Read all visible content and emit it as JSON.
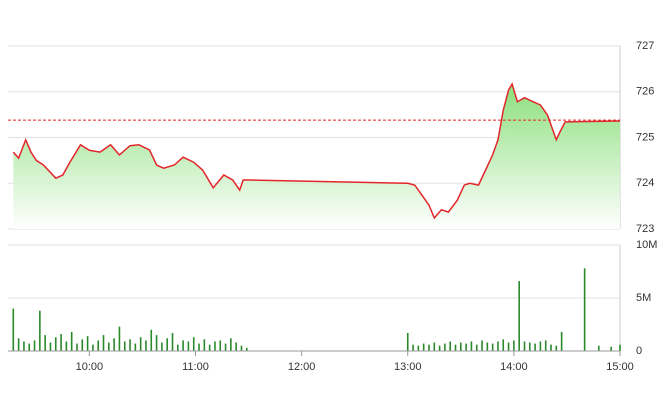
{
  "chart_data": [
    {
      "type": "line",
      "xlim": [
        554,
        900
      ],
      "ylim": [
        723,
        727
      ],
      "yticks": [
        723,
        724,
        725,
        726,
        727
      ],
      "grid": true,
      "color": "#e3262b",
      "fill": "#7fdc6e",
      "reference": 725.38,
      "x": [
        557,
        560,
        564,
        567,
        570,
        574,
        581,
        585,
        589,
        595,
        600,
        606,
        612,
        617,
        623,
        628,
        634,
        638,
        642,
        648,
        653,
        659,
        664,
        670,
        676,
        681,
        685,
        687,
        690,
        780,
        784,
        788,
        792,
        795,
        799,
        803,
        808,
        812,
        815,
        820,
        824,
        828,
        831,
        834,
        837,
        839,
        842,
        846,
        851,
        855,
        859,
        864,
        866,
        869,
        900
      ],
      "values": [
        724.68,
        724.55,
        724.95,
        724.68,
        724.5,
        724.4,
        724.11,
        724.18,
        724.46,
        724.84,
        724.72,
        724.68,
        724.84,
        724.62,
        724.82,
        724.84,
        724.73,
        724.4,
        724.33,
        724.4,
        724.57,
        724.46,
        724.29,
        723.9,
        724.18,
        724.07,
        723.85,
        724.07,
        724.07,
        724.0,
        723.96,
        723.74,
        723.52,
        723.24,
        723.42,
        723.37,
        723.63,
        723.96,
        724.0,
        723.96,
        724.29,
        724.62,
        724.95,
        725.6,
        726.04,
        726.17,
        725.78,
        725.87,
        725.78,
        725.71,
        725.49,
        724.95,
        725.12,
        725.34,
        725.36
      ]
    },
    {
      "type": "bar",
      "xlim": [
        554,
        900
      ],
      "ylim": [
        0,
        10000000
      ],
      "yticks": [
        0,
        {
          "value": 5000000,
          "label": "5M"
        },
        {
          "value": 10000000,
          "label": "10M"
        }
      ],
      "grid": true,
      "xticks": [
        {
          "value": 600,
          "label": "10:00"
        },
        {
          "value": 660,
          "label": "11:00"
        },
        {
          "value": 720,
          "label": "12:00"
        },
        {
          "value": 780,
          "label": "13:00"
        },
        {
          "value": 840,
          "label": "14:00"
        },
        {
          "value": 900,
          "label": "15:00"
        }
      ],
      "color": "#2a8a2a",
      "x": [
        557,
        560,
        563,
        566,
        569,
        572,
        575,
        578,
        581,
        584,
        587,
        590,
        593,
        596,
        599,
        602,
        605,
        608,
        611,
        614,
        617,
        620,
        623,
        626,
        629,
        632,
        635,
        638,
        641,
        644,
        647,
        650,
        653,
        656,
        659,
        662,
        665,
        668,
        671,
        674,
        677,
        680,
        683,
        686,
        689,
        780,
        783,
        786,
        789,
        792,
        795,
        798,
        801,
        804,
        807,
        810,
        813,
        816,
        819,
        822,
        825,
        828,
        831,
        834,
        837,
        840,
        843,
        846,
        849,
        852,
        855,
        858,
        861,
        864,
        867,
        880,
        888,
        895,
        900
      ],
      "values": [
        4000000,
        1200000,
        900000,
        700000,
        1000000,
        3800000,
        1500000,
        800000,
        1300000,
        1600000,
        900000,
        1800000,
        700000,
        1100000,
        1400000,
        600000,
        1000000,
        1500000,
        800000,
        1200000,
        2300000,
        900000,
        1100000,
        700000,
        1300000,
        1000000,
        2000000,
        1500000,
        800000,
        1200000,
        1700000,
        600000,
        1000000,
        900000,
        1300000,
        700000,
        1100000,
        600000,
        900000,
        1000000,
        700000,
        1200000,
        800000,
        500000,
        300000,
        1700000,
        600000,
        500000,
        700000,
        600000,
        800000,
        500000,
        700000,
        900000,
        600000,
        800000,
        700000,
        900000,
        600000,
        1000000,
        800000,
        700000,
        900000,
        1100000,
        800000,
        1000000,
        6600000,
        900000,
        800000,
        700000,
        900000,
        1000000,
        600000,
        500000,
        1800000,
        7800000,
        500000,
        400000,
        600000
      ]
    }
  ]
}
